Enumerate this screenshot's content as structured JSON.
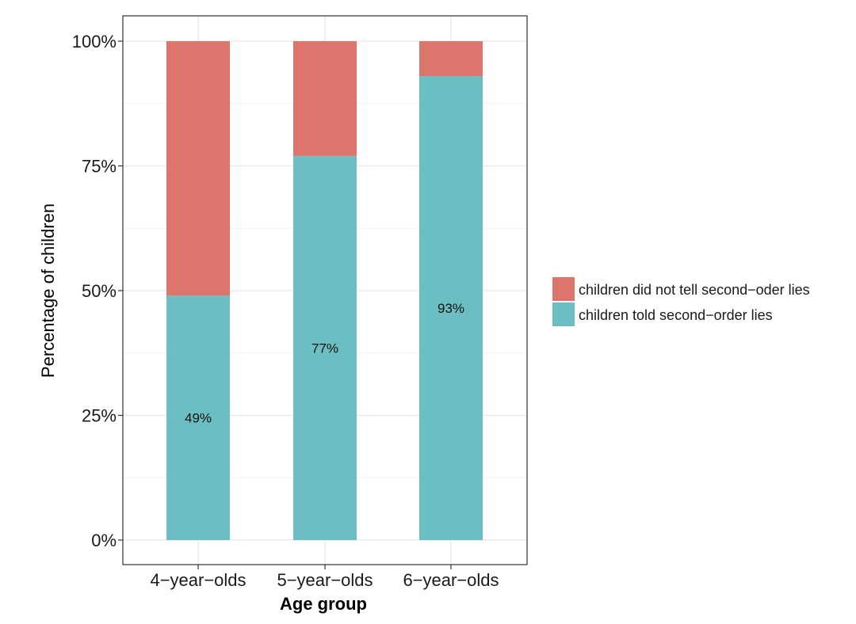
{
  "chart_data": {
    "type": "bar",
    "stacked": true,
    "percent_scale": true,
    "title": "",
    "xlabel": "Age group",
    "ylabel": "Percentage of children",
    "categories": [
      "4−year−olds",
      "5−year−olds",
      "6−year−olds"
    ],
    "ylim": [
      0,
      100
    ],
    "y_ticks": [
      "0%",
      "25%",
      "50%",
      "75%",
      "100%"
    ],
    "y_tick_values": [
      0,
      25,
      50,
      75,
      100
    ],
    "series": [
      {
        "name": "children told second−order lies",
        "values": [
          49,
          77,
          93
        ],
        "color": "#6bbec2"
      },
      {
        "name": "children did not tell second−oder lies",
        "values": [
          51,
          23,
          7
        ],
        "color": "#de756d"
      }
    ],
    "data_labels": [
      "49%",
      "77%",
      "93%"
    ],
    "legend_order": [
      "children did not tell second−oder lies",
      "children told second−order lies"
    ],
    "legend_position": "right",
    "grid": true
  },
  "colors": {
    "panel_border": "#333333",
    "grid_major": "#e6e6e6",
    "grid_minor": "#f2f2f2"
  }
}
